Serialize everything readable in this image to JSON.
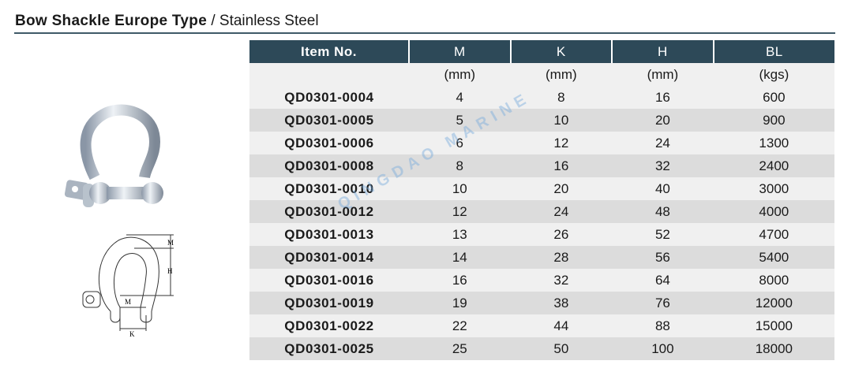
{
  "title": {
    "bold": "Bow Shackle Europe Type",
    "rest": " / Stainless Steel"
  },
  "watermark": "QINGDAO MARINE",
  "diagram_labels": {
    "m": "M",
    "h": "H",
    "k": "K"
  },
  "colors": {
    "header_bg": "#2d4958",
    "row_dark": "#dcdcdc",
    "row_light": "#f0f0f0"
  },
  "table": {
    "headers": [
      "Item No.",
      "M",
      "K",
      "H",
      "BL"
    ],
    "units": [
      "",
      "(mm)",
      "(mm)",
      "(mm)",
      "(kgs)"
    ],
    "rows": [
      [
        "QD0301-0004",
        "4",
        "8",
        "16",
        "600"
      ],
      [
        "QD0301-0005",
        "5",
        "10",
        "20",
        "900"
      ],
      [
        "QD0301-0006",
        "6",
        "12",
        "24",
        "1300"
      ],
      [
        "QD0301-0008",
        "8",
        "16",
        "32",
        "2400"
      ],
      [
        "QD0301-0010",
        "10",
        "20",
        "40",
        "3000"
      ],
      [
        "QD0301-0012",
        "12",
        "24",
        "48",
        "4000"
      ],
      [
        "QD0301-0013",
        "13",
        "26",
        "52",
        "4700"
      ],
      [
        "QD0301-0014",
        "14",
        "28",
        "56",
        "5400"
      ],
      [
        "QD0301-0016",
        "16",
        "32",
        "64",
        "8000"
      ],
      [
        "QD0301-0019",
        "19",
        "38",
        "76",
        "12000"
      ],
      [
        "QD0301-0022",
        "22",
        "44",
        "88",
        "15000"
      ],
      [
        "QD0301-0025",
        "25",
        "50",
        "100",
        "18000"
      ]
    ]
  }
}
